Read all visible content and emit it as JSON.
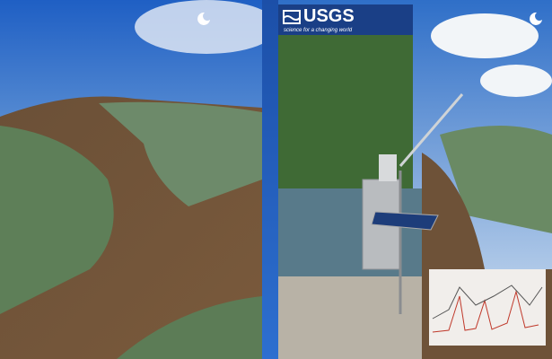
{
  "header": {
    "logo": "USGS",
    "tagline": "science for a changing world"
  }
}
